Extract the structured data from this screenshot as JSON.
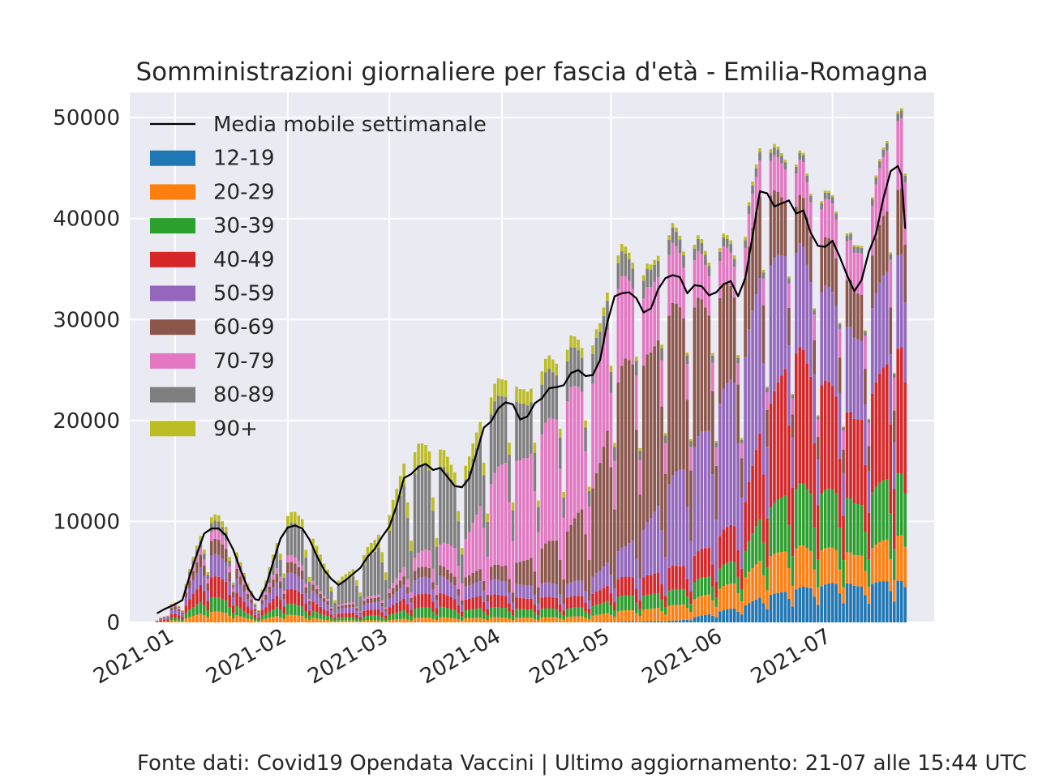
{
  "chart_data": {
    "type": "bar",
    "stacked": true,
    "title": "Somministrazioni giornaliere per fascia d'età - Emilia-Romagna",
    "x_start": "2020-12-27",
    "x_end": "2021-07-21",
    "x_ticks": [
      "2021-01",
      "2021-02",
      "2021-03",
      "2021-04",
      "2021-05",
      "2021-06",
      "2021-07"
    ],
    "y_ticks": [
      "0",
      "10000",
      "20000",
      "30000",
      "40000",
      "50000"
    ],
    "ylim": [
      0,
      52500
    ],
    "grid": true,
    "legend_position": "top-left",
    "moving_average": {
      "name": "Media mobile settimanale",
      "color": "#000000",
      "points": [
        [
          "2020-12-27",
          900
        ],
        [
          "2020-12-29",
          1300
        ],
        [
          "2021-01-01",
          1800
        ],
        [
          "2021-01-03",
          2200
        ],
        [
          "2021-01-05",
          4600
        ],
        [
          "2021-01-07",
          6800
        ],
        [
          "2021-01-09",
          8800
        ],
        [
          "2021-01-11",
          9300
        ],
        [
          "2021-01-13",
          9300
        ],
        [
          "2021-01-15",
          8600
        ],
        [
          "2021-01-17",
          7200
        ],
        [
          "2021-01-19",
          5200
        ],
        [
          "2021-01-21",
          3400
        ],
        [
          "2021-01-23",
          2300
        ],
        [
          "2021-01-24",
          2200
        ],
        [
          "2021-01-26",
          3600
        ],
        [
          "2021-01-28",
          6000
        ],
        [
          "2021-01-30",
          8300
        ],
        [
          "2021-02-01",
          9400
        ],
        [
          "2021-02-03",
          9600
        ],
        [
          "2021-02-05",
          9300
        ],
        [
          "2021-02-07",
          8200
        ],
        [
          "2021-02-09",
          6600
        ],
        [
          "2021-02-11",
          5200
        ],
        [
          "2021-02-13",
          4300
        ],
        [
          "2021-02-15",
          3700
        ],
        [
          "2021-02-17",
          4200
        ],
        [
          "2021-02-19",
          4800
        ],
        [
          "2021-02-21",
          5400
        ],
        [
          "2021-02-23",
          6500
        ],
        [
          "2021-02-25",
          7300
        ],
        [
          "2021-02-27",
          8500
        ],
        [
          "2021-03-01",
          9500
        ],
        [
          "2021-03-03",
          11600
        ],
        [
          "2021-03-05",
          14300
        ],
        [
          "2021-03-07",
          14700
        ],
        [
          "2021-03-09",
          15400
        ],
        [
          "2021-03-11",
          15700
        ],
        [
          "2021-03-13",
          15100
        ],
        [
          "2021-03-15",
          15300
        ],
        [
          "2021-03-17",
          14400
        ],
        [
          "2021-03-19",
          13500
        ],
        [
          "2021-03-21",
          13400
        ],
        [
          "2021-03-23",
          14300
        ],
        [
          "2021-03-25",
          16800
        ],
        [
          "2021-03-27",
          19300
        ],
        [
          "2021-03-29",
          19900
        ],
        [
          "2021-03-31",
          21200
        ],
        [
          "2021-04-02",
          21800
        ],
        [
          "2021-04-04",
          21600
        ],
        [
          "2021-04-06",
          20100
        ],
        [
          "2021-04-08",
          20400
        ],
        [
          "2021-04-10",
          21700
        ],
        [
          "2021-04-12",
          22200
        ],
        [
          "2021-04-14",
          23200
        ],
        [
          "2021-04-16",
          23300
        ],
        [
          "2021-04-18",
          23500
        ],
        [
          "2021-04-20",
          24700
        ],
        [
          "2021-04-22",
          25000
        ],
        [
          "2021-04-24",
          24400
        ],
        [
          "2021-04-26",
          24500
        ],
        [
          "2021-04-28",
          26000
        ],
        [
          "2021-04-30",
          29700
        ],
        [
          "2021-05-02",
          32300
        ],
        [
          "2021-05-04",
          32600
        ],
        [
          "2021-05-06",
          32700
        ],
        [
          "2021-05-08",
          32100
        ],
        [
          "2021-05-10",
          30700
        ],
        [
          "2021-05-12",
          31100
        ],
        [
          "2021-05-14",
          33000
        ],
        [
          "2021-05-16",
          34100
        ],
        [
          "2021-05-18",
          34400
        ],
        [
          "2021-05-20",
          34200
        ],
        [
          "2021-05-22",
          32600
        ],
        [
          "2021-05-24",
          33400
        ],
        [
          "2021-05-26",
          33300
        ],
        [
          "2021-05-28",
          32400
        ],
        [
          "2021-05-30",
          32700
        ],
        [
          "2021-06-01",
          33500
        ],
        [
          "2021-06-03",
          33800
        ],
        [
          "2021-06-05",
          32300
        ],
        [
          "2021-06-07",
          34100
        ],
        [
          "2021-06-09",
          38300
        ],
        [
          "2021-06-11",
          42700
        ],
        [
          "2021-06-13",
          42500
        ],
        [
          "2021-06-15",
          41200
        ],
        [
          "2021-06-17",
          41500
        ],
        [
          "2021-06-19",
          41800
        ],
        [
          "2021-06-21",
          40500
        ],
        [
          "2021-06-23",
          40800
        ],
        [
          "2021-06-25",
          38600
        ],
        [
          "2021-06-27",
          37300
        ],
        [
          "2021-06-29",
          37200
        ],
        [
          "2021-07-01",
          37800
        ],
        [
          "2021-07-03",
          36200
        ],
        [
          "2021-07-05",
          34400
        ],
        [
          "2021-07-07",
          32800
        ],
        [
          "2021-07-09",
          33900
        ],
        [
          "2021-07-11",
          36700
        ],
        [
          "2021-07-13",
          38500
        ],
        [
          "2021-07-15",
          42000
        ],
        [
          "2021-07-17",
          44700
        ],
        [
          "2021-07-19",
          45200
        ],
        [
          "2021-07-20",
          44300
        ],
        [
          "2021-07-21",
          39000
        ]
      ]
    },
    "series": [
      {
        "name": "12-19",
        "color": "#1f77b4"
      },
      {
        "name": "20-29",
        "color": "#ff7f0e"
      },
      {
        "name": "30-39",
        "color": "#2ca02c"
      },
      {
        "name": "40-49",
        "color": "#d62728"
      },
      {
        "name": "50-59",
        "color": "#9467bd"
      },
      {
        "name": "60-69",
        "color": "#8c564b"
      },
      {
        "name": "70-79",
        "color": "#e377c2"
      },
      {
        "name": "80-89",
        "color": "#7f7f7f"
      },
      {
        "name": "90+",
        "color": "#bcbd22"
      }
    ],
    "age_share_anchors": [
      [
        "2020-12-27",
        [
          0,
          0.1,
          0.14,
          0.2,
          0.22,
          0.14,
          0.08,
          0.07,
          0.05
        ]
      ],
      [
        "2021-01-20",
        [
          0,
          0.1,
          0.13,
          0.19,
          0.2,
          0.14,
          0.09,
          0.09,
          0.06
        ]
      ],
      [
        "2021-02-10",
        [
          0,
          0.05,
          0.08,
          0.1,
          0.12,
          0.07,
          0.04,
          0.42,
          0.12
        ]
      ],
      [
        "2021-02-28",
        [
          0,
          0.02,
          0.05,
          0.07,
          0.08,
          0.05,
          0.03,
          0.55,
          0.15
        ]
      ],
      [
        "2021-03-15",
        [
          0,
          0.03,
          0.06,
          0.08,
          0.1,
          0.06,
          0.12,
          0.45,
          0.1
        ]
      ],
      [
        "2021-04-01",
        [
          0,
          0.02,
          0.04,
          0.05,
          0.06,
          0.06,
          0.42,
          0.28,
          0.07
        ]
      ],
      [
        "2021-04-20",
        [
          0,
          0.02,
          0.03,
          0.04,
          0.05,
          0.2,
          0.48,
          0.14,
          0.04
        ]
      ],
      [
        "2021-05-05",
        [
          0.002,
          0.03,
          0.04,
          0.05,
          0.08,
          0.5,
          0.22,
          0.06,
          0.018
        ]
      ],
      [
        "2021-05-20",
        [
          0.005,
          0.04,
          0.04,
          0.06,
          0.25,
          0.42,
          0.14,
          0.035,
          0.01
        ]
      ],
      [
        "2021-06-05",
        [
          0.04,
          0.07,
          0.06,
          0.1,
          0.4,
          0.22,
          0.08,
          0.02,
          0.01
        ]
      ],
      [
        "2021-06-20",
        [
          0.07,
          0.09,
          0.13,
          0.3,
          0.22,
          0.1,
          0.07,
          0.015,
          0.005
        ]
      ],
      [
        "2021-07-05",
        [
          0.1,
          0.08,
          0.14,
          0.22,
          0.22,
          0.12,
          0.1,
          0.015,
          0.005
        ]
      ],
      [
        "2021-07-21",
        [
          0.08,
          0.09,
          0.12,
          0.25,
          0.18,
          0.13,
          0.14,
          0.015,
          0.005
        ]
      ]
    ]
  },
  "footer": "Fonte dati: Covid19 Opendata Vaccini | Ultimo aggiornamento: 21-07 alle 15:44 UTC"
}
